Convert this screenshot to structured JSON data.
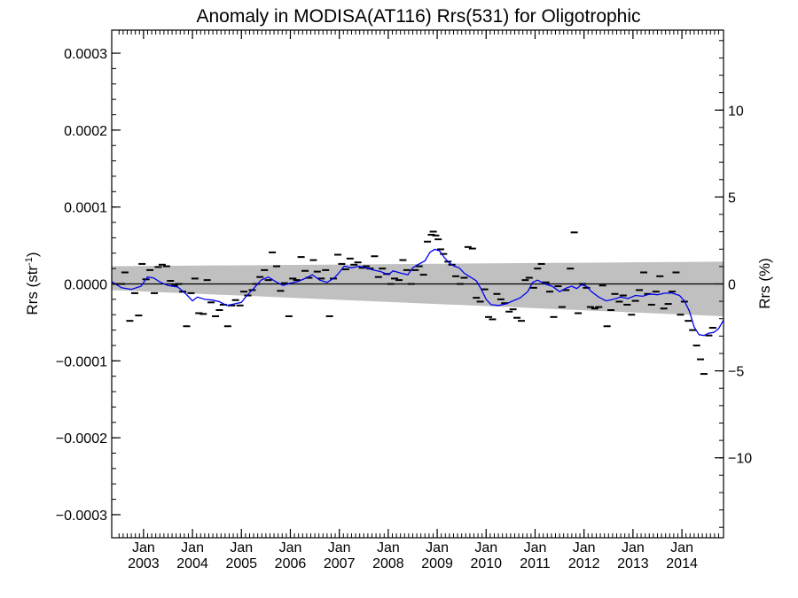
{
  "chart_data": {
    "type": "scatter",
    "title": "Anomaly in MODISA(AT116) Rrs(531) for Oligotrophic",
    "ylabel_left": {
      "text": "Rrs (str",
      "sup": "-1",
      "close": ")"
    },
    "ylabel_right": "Rrs (%)",
    "x_range": [
      2002.35,
      2014.85
    ],
    "y_range": [
      -0.00033,
      0.00033
    ],
    "y_right_range": [
      -14.6,
      14.6
    ],
    "grid": false,
    "colors": {
      "smooth": "#0000ee",
      "band": "#c0c0c0",
      "points": "#000000",
      "zero": "#000000"
    },
    "y_ticks": [
      {
        "v": 0.0003,
        "label": "0.0003"
      },
      {
        "v": 0.0002,
        "label": "0.0002"
      },
      {
        "v": 0.0001,
        "label": "0.0001"
      },
      {
        "v": 0,
        "label": "0.0000"
      },
      {
        "v": -0.0001,
        "label": "−0.0001"
      },
      {
        "v": -0.0002,
        "label": "−0.0002"
      },
      {
        "v": -0.0003,
        "label": "−0.0003"
      }
    ],
    "y_right_ticks": [
      {
        "v": 10,
        "label": "10"
      },
      {
        "v": 5,
        "label": "5"
      },
      {
        "v": 0,
        "label": "0"
      },
      {
        "v": -5,
        "label": "−5"
      },
      {
        "v": -10,
        "label": "−10"
      }
    ],
    "x_ticks": [
      {
        "v": 2003.0,
        "month": "Jan",
        "year": "2003"
      },
      {
        "v": 2004.0,
        "month": "Jan",
        "year": "2004"
      },
      {
        "v": 2005.0,
        "month": "Jan",
        "year": "2005"
      },
      {
        "v": 2006.0,
        "month": "Jan",
        "year": "2006"
      },
      {
        "v": 2007.0,
        "month": "Jan",
        "year": "2007"
      },
      {
        "v": 2008.0,
        "month": "Jan",
        "year": "2008"
      },
      {
        "v": 2009.0,
        "month": "Jan",
        "year": "2009"
      },
      {
        "v": 2010.0,
        "month": "Jan",
        "year": "2010"
      },
      {
        "v": 2011.0,
        "month": "Jan",
        "year": "2011"
      },
      {
        "v": 2012.0,
        "month": "Jan",
        "year": "2012"
      },
      {
        "v": 2013.0,
        "month": "Jan",
        "year": "2013"
      },
      {
        "v": 2014.0,
        "month": "Jan",
        "year": "2014"
      }
    ],
    "band": {
      "upper": [
        [
          2002.35,
          2.3e-05
        ],
        [
          2014.85,
          2.9e-05
        ]
      ],
      "lower": [
        [
          2002.35,
          -8e-06
        ],
        [
          2014.85,
          -4.2e-05
        ]
      ]
    },
    "points": [
      [
        2002.45,
        0.0
      ],
      [
        2002.55,
        0.0
      ],
      [
        2002.62,
        1.5e-05
      ],
      [
        2002.72,
        -4.8e-05
      ],
      [
        2002.82,
        -1.2e-05
      ],
      [
        2002.9,
        -4.1e-05
      ],
      [
        2002.97,
        2.6e-05
      ],
      [
        2003.05,
        6e-06
      ],
      [
        2003.13,
        1.8e-05
      ],
      [
        2003.22,
        -1.2e-05
      ],
      [
        2003.3,
        2.2e-05
      ],
      [
        2003.38,
        2.5e-05
      ],
      [
        2003.47,
        2.3e-05
      ],
      [
        2003.55,
        4e-06
      ],
      [
        2003.63,
        -2e-06
      ],
      [
        2003.72,
        0.0
      ],
      [
        2003.8,
        -1e-05
      ],
      [
        2003.88,
        -5.5e-05
      ],
      [
        2003.97,
        -1.2e-05
      ],
      [
        2004.05,
        7e-06
      ],
      [
        2004.13,
        -3.8e-05
      ],
      [
        2004.22,
        -3.9e-05
      ],
      [
        2004.3,
        5e-06
      ],
      [
        2004.38,
        -2.4e-05
      ],
      [
        2004.47,
        -4.2e-05
      ],
      [
        2004.55,
        -3.4e-05
      ],
      [
        2004.63,
        -2.7e-05
      ],
      [
        2004.72,
        -5.5e-05
      ],
      [
        2004.8,
        -2.8e-05
      ],
      [
        2004.88,
        -2.1e-05
      ],
      [
        2004.97,
        -2.8e-05
      ],
      [
        2005.05,
        -1e-05
      ],
      [
        2005.13,
        -1.5e-05
      ],
      [
        2005.22,
        -8e-06
      ],
      [
        2005.3,
        0.0
      ],
      [
        2005.38,
        9e-06
      ],
      [
        2005.47,
        1.8e-05
      ],
      [
        2005.55,
        5e-06
      ],
      [
        2005.63,
        4.1e-05
      ],
      [
        2005.72,
        2.3e-05
      ],
      [
        2005.8,
        -9e-06
      ],
      [
        2005.88,
        1e-06
      ],
      [
        2005.97,
        -4.2e-05
      ],
      [
        2006.05,
        7e-06
      ],
      [
        2006.13,
        5e-06
      ],
      [
        2006.22,
        3.5e-05
      ],
      [
        2006.3,
        1.7e-05
      ],
      [
        2006.38,
        8e-06
      ],
      [
        2006.47,
        3.1e-05
      ],
      [
        2006.55,
        1.6e-05
      ],
      [
        2006.63,
        7e-06
      ],
      [
        2006.72,
        1.8e-05
      ],
      [
        2006.8,
        -4.2e-05
      ],
      [
        2006.88,
        7e-06
      ],
      [
        2006.97,
        3.8e-05
      ],
      [
        2007.05,
        2.6e-05
      ],
      [
        2007.13,
        1.9e-05
      ],
      [
        2007.22,
        3.3e-05
      ],
      [
        2007.3,
        2.5e-05
      ],
      [
        2007.38,
        2.8e-05
      ],
      [
        2007.47,
        2.1e-05
      ],
      [
        2007.55,
        2.3e-05
      ],
      [
        2007.63,
        2e-05
      ],
      [
        2007.72,
        3.6e-05
      ],
      [
        2007.8,
        9e-06
      ],
      [
        2007.88,
        2e-05
      ],
      [
        2007.97,
        1.3e-05
      ],
      [
        2008.05,
        0.0
      ],
      [
        2008.13,
        7e-06
      ],
      [
        2008.22,
        5e-06
      ],
      [
        2008.3,
        3.1e-05
      ],
      [
        2008.38,
        1.8e-05
      ],
      [
        2008.47,
        0.0
      ],
      [
        2008.55,
        1.8e-05
      ],
      [
        2008.63,
        2.3e-05
      ],
      [
        2008.72,
        1.2e-05
      ],
      [
        2008.8,
        5.5e-05
      ],
      [
        2008.88,
        6.4e-05
      ],
      [
        2008.92,
        6.8e-05
      ],
      [
        2008.97,
        6.3e-05
      ],
      [
        2009.02,
        5.8e-05
      ],
      [
        2009.07,
        4.5e-05
      ],
      [
        2009.13,
        3.9e-05
      ],
      [
        2009.22,
        2.9e-05
      ],
      [
        2009.3,
        2.5e-05
      ],
      [
        2009.38,
        1e-05
      ],
      [
        2009.47,
        0.0
      ],
      [
        2009.55,
        8e-06
      ],
      [
        2009.63,
        4.8e-05
      ],
      [
        2009.72,
        4.6e-05
      ],
      [
        2009.8,
        -1.8e-05
      ],
      [
        2009.88,
        -2.3e-05
      ],
      [
        2009.97,
        -7e-06
      ],
      [
        2010.05,
        -4.3e-05
      ],
      [
        2010.13,
        -4.6e-05
      ],
      [
        2010.22,
        -1.3e-05
      ],
      [
        2010.3,
        -2e-05
      ],
      [
        2010.38,
        -2.5e-05
      ],
      [
        2010.47,
        -3.6e-05
      ],
      [
        2010.55,
        -3.3e-05
      ],
      [
        2010.63,
        -4.4e-05
      ],
      [
        2010.72,
        -4.8e-05
      ],
      [
        2010.8,
        5e-06
      ],
      [
        2010.88,
        8e-06
      ],
      [
        2010.97,
        -5e-06
      ],
      [
        2011.05,
        2e-05
      ],
      [
        2011.13,
        2.6e-05
      ],
      [
        2011.22,
        2e-06
      ],
      [
        2011.3,
        -1e-05
      ],
      [
        2011.38,
        -4.3e-05
      ],
      [
        2011.47,
        -3e-06
      ],
      [
        2011.55,
        -3e-05
      ],
      [
        2011.63,
        -8e-06
      ],
      [
        2011.72,
        2e-05
      ],
      [
        2011.8,
        6.7e-05
      ],
      [
        2011.88,
        -3.8e-05
      ],
      [
        2011.97,
        0.0
      ],
      [
        2012.05,
        -5e-06
      ],
      [
        2012.13,
        -3e-05
      ],
      [
        2012.22,
        -3.2e-05
      ],
      [
        2012.3,
        -3e-05
      ],
      [
        2012.38,
        -2e-06
      ],
      [
        2012.47,
        -5.5e-05
      ],
      [
        2012.55,
        -3.4e-05
      ],
      [
        2012.63,
        -1.3e-05
      ],
      [
        2012.72,
        -2.3e-05
      ],
      [
        2012.8,
        -1.5e-05
      ],
      [
        2012.88,
        -2.7e-05
      ],
      [
        2012.97,
        -4e-05
      ],
      [
        2013.05,
        -2.2e-05
      ],
      [
        2013.13,
        -8e-06
      ],
      [
        2013.22,
        1.5e-05
      ],
      [
        2013.3,
        -1.3e-05
      ],
      [
        2013.38,
        -2.7e-05
      ],
      [
        2013.47,
        -1e-05
      ],
      [
        2013.55,
        1e-05
      ],
      [
        2013.63,
        -3.2e-05
      ],
      [
        2013.72,
        -2.6e-05
      ],
      [
        2013.8,
        -1e-05
      ],
      [
        2013.88,
        1.5e-05
      ],
      [
        2013.97,
        -4e-05
      ],
      [
        2014.05,
        -2.3e-05
      ],
      [
        2014.13,
        -4.8e-05
      ],
      [
        2014.22,
        -6e-05
      ],
      [
        2014.3,
        -8e-05
      ],
      [
        2014.38,
        -9.8e-05
      ],
      [
        2014.45,
        -0.000117
      ],
      [
        2014.55,
        -6.7e-05
      ],
      [
        2014.63,
        -5.7e-05
      ]
    ],
    "smooth": [
      [
        2002.35,
        3e-06
      ],
      [
        2002.55,
        -5e-06
      ],
      [
        2002.75,
        -7e-06
      ],
      [
        2002.95,
        -3e-06
      ],
      [
        2003.08,
        9e-06
      ],
      [
        2003.2,
        8e-06
      ],
      [
        2003.35,
        2e-06
      ],
      [
        2003.5,
        -2e-06
      ],
      [
        2003.7,
        -4e-06
      ],
      [
        2003.85,
        -1.2e-05
      ],
      [
        2004.0,
        -2.2e-05
      ],
      [
        2004.1,
        -1.7e-05
      ],
      [
        2004.25,
        -2e-05
      ],
      [
        2004.4,
        -2.1e-05
      ],
      [
        2004.55,
        -2.3e-05
      ],
      [
        2004.7,
        -2.8e-05
      ],
      [
        2004.85,
        -2.6e-05
      ],
      [
        2005.0,
        -2.4e-05
      ],
      [
        2005.1,
        -1.6e-05
      ],
      [
        2005.25,
        -6e-06
      ],
      [
        2005.4,
        5e-06
      ],
      [
        2005.55,
        9e-06
      ],
      [
        2005.7,
        3e-06
      ],
      [
        2005.85,
        -2e-06
      ],
      [
        2006.0,
        1e-06
      ],
      [
        2006.15,
        3e-06
      ],
      [
        2006.3,
        7e-06
      ],
      [
        2006.45,
        1.2e-05
      ],
      [
        2006.6,
        5e-06
      ],
      [
        2006.75,
        2e-06
      ],
      [
        2006.9,
        8e-06
      ],
      [
        2007.0,
        1.5e-05
      ],
      [
        2007.1,
        2.3e-05
      ],
      [
        2007.25,
        2.1e-05
      ],
      [
        2007.4,
        2.3e-05
      ],
      [
        2007.55,
        2.1e-05
      ],
      [
        2007.7,
        1.8e-05
      ],
      [
        2007.85,
        1.6e-05
      ],
      [
        2008.0,
        1.2e-05
      ],
      [
        2008.1,
        1.7e-05
      ],
      [
        2008.25,
        1.4e-05
      ],
      [
        2008.4,
        1.2e-05
      ],
      [
        2008.5,
        2.1e-05
      ],
      [
        2008.6,
        2.5e-05
      ],
      [
        2008.75,
        3e-05
      ],
      [
        2008.85,
        4.1e-05
      ],
      [
        2008.95,
        4.5e-05
      ],
      [
        2009.05,
        4.3e-05
      ],
      [
        2009.15,
        3.4e-05
      ],
      [
        2009.25,
        2.7e-05
      ],
      [
        2009.35,
        2.3e-05
      ],
      [
        2009.45,
        2.1e-05
      ],
      [
        2009.55,
        1.4e-05
      ],
      [
        2009.65,
        1e-05
      ],
      [
        2009.8,
        4e-06
      ],
      [
        2009.9,
        -7e-06
      ],
      [
        2010.0,
        -2e-05
      ],
      [
        2010.1,
        -2.7e-05
      ],
      [
        2010.25,
        -2.8e-05
      ],
      [
        2010.4,
        -2.6e-05
      ],
      [
        2010.55,
        -2.2e-05
      ],
      [
        2010.7,
        -1.8e-05
      ],
      [
        2010.85,
        -1e-05
      ],
      [
        2010.95,
        2e-06
      ],
      [
        2011.05,
        5e-06
      ],
      [
        2011.2,
        0.0
      ],
      [
        2011.35,
        -3e-06
      ],
      [
        2011.5,
        -1e-05
      ],
      [
        2011.65,
        -5e-06
      ],
      [
        2011.75,
        -3e-06
      ],
      [
        2011.85,
        -6e-06
      ],
      [
        2011.95,
        -1e-06
      ],
      [
        2012.05,
        -3e-06
      ],
      [
        2012.15,
        -1e-05
      ],
      [
        2012.3,
        -1.7e-05
      ],
      [
        2012.45,
        -2.2e-05
      ],
      [
        2012.6,
        -2e-05
      ],
      [
        2012.75,
        -1.7e-05
      ],
      [
        2012.9,
        -1.9e-05
      ],
      [
        2013.05,
        -1.5e-05
      ],
      [
        2013.2,
        -1.6e-05
      ],
      [
        2013.35,
        -1.3e-05
      ],
      [
        2013.5,
        -1.4e-05
      ],
      [
        2013.65,
        -1.2e-05
      ],
      [
        2013.8,
        -1.2e-05
      ],
      [
        2013.95,
        -1.5e-05
      ],
      [
        2014.05,
        -2.2e-05
      ],
      [
        2014.15,
        -3.5e-05
      ],
      [
        2014.25,
        -5.6e-05
      ],
      [
        2014.35,
        -6.6e-05
      ],
      [
        2014.45,
        -6.7e-05
      ],
      [
        2014.55,
        -6.4e-05
      ],
      [
        2014.65,
        -6.3e-05
      ],
      [
        2014.75,
        -5.8e-05
      ],
      [
        2014.85,
        -4.7e-05
      ]
    ]
  }
}
